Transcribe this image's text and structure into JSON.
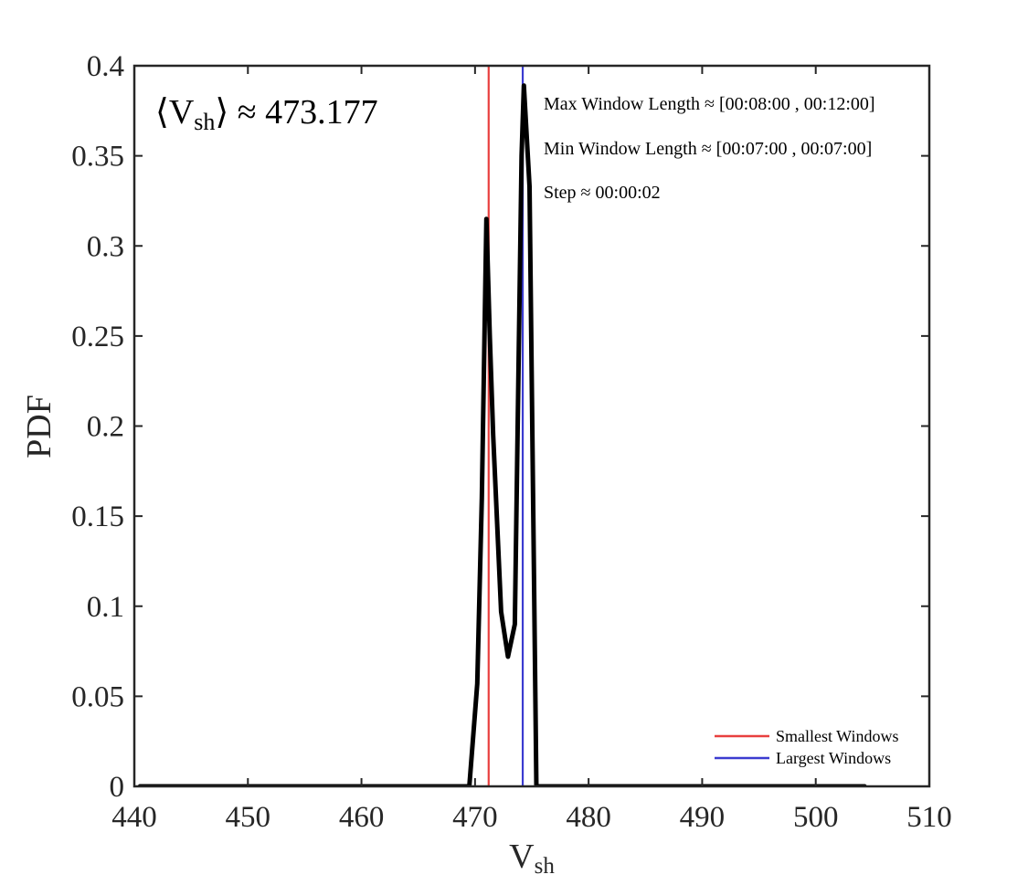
{
  "chart_data": {
    "type": "line",
    "xlabel": "V",
    "xlabel_sub": "sh",
    "ylabel": "PDF",
    "xlim": [
      440,
      510
    ],
    "ylim": [
      0,
      0.4
    ],
    "x_ticks": [
      440,
      450,
      460,
      470,
      480,
      490,
      500,
      510
    ],
    "x_tick_labels": [
      "440",
      "450",
      "460",
      "470",
      "480",
      "490",
      "500",
      "510"
    ],
    "y_ticks": [
      0,
      0.05,
      0.1,
      0.15,
      0.2,
      0.25,
      0.3,
      0.35,
      0.4
    ],
    "y_tick_labels": [
      "0",
      "0.05",
      "0.1",
      "0.15",
      "0.2",
      "0.25",
      "0.3",
      "0.35",
      "0.4"
    ],
    "grid": false,
    "series": [
      {
        "color": "#000000",
        "x": [
          440.5,
          469.5,
          470.2,
          470.6,
          471.0,
          471.3,
          471.6,
          472.3,
          472.9,
          473.5,
          474.1,
          474.3,
          474.8,
          475.4,
          504.3
        ],
        "y": [
          0,
          0,
          0.057,
          0.16,
          0.315,
          0.25,
          0.195,
          0.097,
          0.072,
          0.09,
          0.35,
          0.389,
          0.333,
          0,
          0
        ]
      }
    ],
    "vlines": [
      {
        "name": "Smallest Windows",
        "x": 471.2,
        "color": "#e8403f"
      },
      {
        "name": "Largest Windows",
        "x": 474.2,
        "color": "#3b3bd0"
      }
    ],
    "legend": {
      "placement": "bottom-right",
      "entries": [
        {
          "label": "Smallest Windows",
          "color": "#e8403f"
        },
        {
          "label": "Largest Windows",
          "color": "#3b3bd0"
        }
      ]
    },
    "annotations": {
      "mean_prefix": "⟨V",
      "mean_sub": "sh",
      "mean_suffix": "⟩ ≈ 473.177",
      "lines": [
        "Max Window Length ≈ [00:08:00 , 00:12:00]",
        "Min Window Length ≈ [00:07:00 , 00:07:00]",
        "Step ≈ 00:00:02"
      ]
    }
  }
}
